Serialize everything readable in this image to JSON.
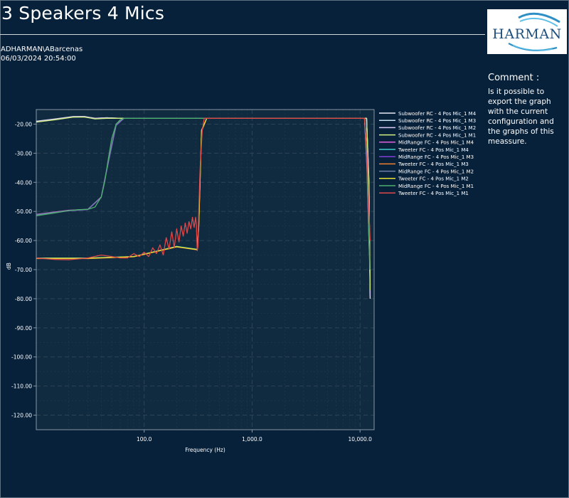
{
  "header": {
    "title": "3 Speakers 4 Mics",
    "user": "ADHARMAN\\ABarcenas",
    "timestamp": "06/03/2024 20:54:00"
  },
  "logo": {
    "text": "HARMAN",
    "accent": "#1e5b93",
    "swoosh": "#31a6d8"
  },
  "comment": {
    "heading": "Comment :",
    "text": "Is it possible to export the graph with the current configuration and the graphs of this meassure."
  },
  "colors": {
    "background": "#08213a",
    "plot_background": "#102a3f",
    "grid": "#2d4356"
  },
  "chart_data": {
    "type": "line",
    "xlabel": "Frequency (Hz)",
    "ylabel": "dB",
    "x_scale": "log",
    "xlim": [
      10,
      13500
    ],
    "ylim": [
      -125,
      -15
    ],
    "x_ticks": [
      100,
      1000,
      10000
    ],
    "x_tick_labels": [
      "100.0",
      "1,000.0",
      "10,000.0"
    ],
    "y_ticks": [
      -20,
      -30,
      -40,
      -50,
      -60,
      -70,
      -80,
      -90,
      -100,
      -110,
      -120
    ],
    "y_tick_labels": [
      "-20.00",
      "-30.00",
      "-40.00",
      "-50.00",
      "-60.00",
      "-70.00",
      "-80.00",
      "-90.00",
      "-100.00",
      "-110.00",
      "-120.00"
    ],
    "grid": true,
    "legend_position": "top-right",
    "series": [
      {
        "name": "Subwoofer RC - 4 Pos Mic_1 M4",
        "color": "#e8e8f5",
        "x": [
          10,
          15,
          22,
          28,
          35,
          45,
          60,
          100,
          300,
          1000,
          5000,
          11000,
          11500,
          12100,
          12400
        ],
        "y": [
          -19,
          -18.2,
          -17.4,
          -17.4,
          -18,
          -17.8,
          -18,
          -18,
          -18,
          -18,
          -18,
          -18,
          -18,
          -40,
          -80
        ]
      },
      {
        "name": "Subwoofer RC - 4 Pos Mic_1 M3",
        "color": "#c8e0f0",
        "x": [
          10,
          15,
          22,
          28,
          35,
          45,
          60,
          100,
          300,
          1000,
          5000,
          11000,
          11500,
          12100,
          12400
        ],
        "y": [
          -19.2,
          -18.4,
          -17.6,
          -17.5,
          -18.1,
          -17.9,
          -18,
          -18,
          -18,
          -18,
          -18,
          -18,
          -18,
          -42,
          -78
        ]
      },
      {
        "name": "Subwoofer RC - 4 Pos Mic_1 M2",
        "color": "#d8c8f8",
        "x": [
          10,
          15,
          22,
          28,
          35,
          45,
          60,
          100,
          300,
          1000,
          5000,
          11000,
          11500,
          12100,
          12400
        ],
        "y": [
          -19.1,
          -18.3,
          -17.5,
          -17.4,
          -18,
          -17.8,
          -18,
          -18,
          -18,
          -18,
          -18,
          -18,
          -18,
          -41,
          -79
        ]
      },
      {
        "name": "Subwoofer RC - 4 Pos Mic_1 M1",
        "color": "#d0f080",
        "x": [
          10,
          15,
          22,
          28,
          35,
          45,
          60,
          100,
          300,
          1000,
          5000,
          11000,
          11500,
          12100,
          12400
        ],
        "y": [
          -19.3,
          -18.5,
          -17.6,
          -17.6,
          -18.2,
          -18,
          -18,
          -18,
          -18,
          -18,
          -18,
          -18,
          -18,
          -43,
          -77
        ]
      },
      {
        "name": "MidRange FC - 4 Pos Mic_1 M4",
        "color": "#e060e0",
        "x": [
          10,
          20,
          30,
          40,
          47,
          55,
          65,
          80,
          150,
          500,
          2000,
          11000,
          11600,
          12200
        ],
        "y": [
          -51,
          -49.6,
          -49.3,
          -45,
          -32,
          -20,
          -18,
          -18,
          -18,
          -18,
          -18,
          -18,
          -35,
          -65
        ]
      },
      {
        "name": "Tweeter FC - 4 Pos Mic_1 M4",
        "color": "#40d0d0",
        "x": [
          10,
          30,
          80,
          200,
          310,
          320,
          340,
          380,
          500,
          1000,
          5000,
          11000,
          11600,
          12200
        ],
        "y": [
          -66,
          -66,
          -65.5,
          -62,
          -63,
          -55,
          -22,
          -18,
          -18,
          -18,
          -18,
          -18,
          -30,
          -55
        ]
      },
      {
        "name": "MidRange FC - 4 Pos Mic_1 M3",
        "color": "#8040d8",
        "x": [
          10,
          20,
          30,
          40,
          47,
          55,
          65,
          80,
          150,
          500,
          2000,
          11000,
          11600,
          12200
        ],
        "y": [
          -51.2,
          -49.8,
          -49.4,
          -45.2,
          -32.5,
          -20.5,
          -18,
          -18,
          -18,
          -18,
          -18,
          -18,
          -36,
          -64
        ]
      },
      {
        "name": "Tweeter FC - 4 Pos Mic_1 M3",
        "color": "#f08030",
        "x": [
          10,
          30,
          80,
          200,
          310,
          320,
          340,
          380,
          500,
          1000,
          5000,
          11000,
          11600,
          12200
        ],
        "y": [
          -66.2,
          -66.2,
          -65.6,
          -62.2,
          -63.2,
          -55.5,
          -22.5,
          -18,
          -18,
          -18,
          -18,
          -18,
          -31,
          -54
        ]
      },
      {
        "name": "MidRange FC - 4 Pos Mic_1 M2",
        "color": "#7080a8",
        "x": [
          10,
          20,
          30,
          40,
          47,
          55,
          65,
          80,
          150,
          500,
          2000,
          11000,
          11600,
          12200
        ],
        "y": [
          -51.1,
          -49.7,
          -49.3,
          -45.1,
          -32.2,
          -20.2,
          -18,
          -18,
          -18,
          -18,
          -18,
          -18,
          -35.5,
          -64.5
        ]
      },
      {
        "name": "Tweeter FC - 4 Pos Mic_1 M2",
        "color": "#e8e030",
        "x": [
          10,
          30,
          80,
          200,
          310,
          320,
          340,
          380,
          500,
          1000,
          5000,
          11000,
          11600,
          12200
        ],
        "y": [
          -66.1,
          -66.1,
          -65.5,
          -62.1,
          -63.1,
          -55.2,
          -22.2,
          -18,
          -18,
          -18,
          -18,
          -18,
          -30.5,
          -54.5
        ]
      },
      {
        "name": "MidRange FC - 4 Pos Mic_1 M1",
        "color": "#4caf6e",
        "x": [
          10,
          15,
          20,
          25,
          30,
          35,
          40,
          43,
          46,
          50,
          55,
          60,
          65,
          70,
          80,
          100,
          200,
          500,
          1000,
          5000,
          10000,
          11000,
          11600,
          12000,
          12300
        ],
        "y": [
          -51.5,
          -50.5,
          -49.7,
          -49.4,
          -49.3,
          -48.5,
          -45,
          -40,
          -33,
          -25,
          -20,
          -18.5,
          -18,
          -18,
          -18,
          -18,
          -18,
          -18,
          -18,
          -18,
          -18,
          -18,
          -30,
          -55,
          -70
        ]
      },
      {
        "name": "Tweeter FC - 4 Pos Mic_1 M1",
        "color": "#e04848",
        "x": [
          10,
          15,
          20,
          30,
          40,
          50,
          60,
          70,
          80,
          90,
          100,
          110,
          120,
          130,
          140,
          150,
          160,
          170,
          180,
          190,
          200,
          210,
          220,
          230,
          240,
          250,
          260,
          270,
          280,
          290,
          300,
          305,
          310,
          315,
          320,
          330,
          345,
          360,
          380,
          420,
          500,
          1000,
          3000,
          5000,
          10000,
          11000,
          11600,
          12100,
          12400
        ],
        "y": [
          -66,
          -66.5,
          -66.6,
          -66,
          -65,
          -65.5,
          -66,
          -66,
          -64.5,
          -65.5,
          -64,
          -65.5,
          -62.5,
          -64.5,
          -61.5,
          -65,
          -59,
          -63,
          -57,
          -62.5,
          -56,
          -60.5,
          -55,
          -58.5,
          -54,
          -57.5,
          -53.5,
          -56,
          -52,
          -55.5,
          -52,
          -55,
          -63.5,
          -62,
          -50,
          -35,
          -22,
          -18,
          -18,
          -18,
          -18,
          -18,
          -18,
          -18,
          -18,
          -18,
          -30,
          -50,
          -60
        ]
      }
    ]
  }
}
